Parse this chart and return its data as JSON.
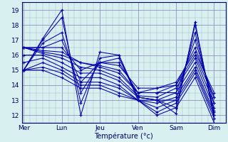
{
  "bg_color": "#d8f0f0",
  "grid_color_major": "#8888bb",
  "grid_color_minor": "#aabbcc",
  "line_color": "#0000aa",
  "ylim": [
    11.5,
    19.5
  ],
  "yticks": [
    12,
    13,
    14,
    15,
    16,
    17,
    18,
    19
  ],
  "day_labels": [
    "Mer",
    "Lun",
    "Jeu",
    "Ven",
    "Sam",
    "Dim"
  ],
  "xlabel": "Température (°c)",
  "x_major": [
    0,
    1,
    2,
    3,
    4,
    5
  ],
  "xlim": [
    -0.05,
    5.3
  ],
  "series": [
    [
      15.0,
      17.1,
      19.0,
      12.0,
      16.2,
      16.0,
      13.2,
      13.0,
      12.1,
      18.2,
      11.8
    ],
    [
      15.0,
      17.0,
      18.5,
      12.8,
      15.8,
      16.0,
      13.0,
      13.0,
      12.5,
      18.0,
      12.0
    ],
    [
      15.0,
      16.8,
      17.5,
      13.5,
      15.5,
      15.8,
      13.2,
      13.0,
      13.0,
      17.5,
      12.3
    ],
    [
      16.5,
      16.5,
      17.0,
      14.2,
      15.5,
      15.5,
      13.5,
      13.5,
      13.5,
      17.0,
      12.8
    ],
    [
      16.5,
      16.5,
      16.5,
      15.0,
      15.5,
      15.3,
      13.8,
      13.8,
      14.0,
      16.5,
      13.2
    ],
    [
      16.5,
      16.3,
      16.2,
      15.5,
      15.3,
      15.0,
      13.5,
      13.8,
      14.2,
      16.2,
      13.5
    ],
    [
      16.5,
      16.2,
      16.0,
      15.5,
      15.2,
      14.8,
      13.5,
      13.5,
      14.0,
      16.0,
      13.2
    ],
    [
      16.5,
      16.1,
      15.8,
      15.2,
      15.0,
      14.5,
      13.3,
      13.2,
      13.8,
      15.8,
      12.8
    ],
    [
      16.0,
      16.0,
      15.5,
      14.8,
      14.8,
      14.3,
      13.2,
      13.0,
      13.5,
      15.5,
      12.5
    ],
    [
      15.5,
      15.8,
      15.2,
      14.5,
      14.5,
      14.0,
      13.0,
      12.8,
      13.2,
      15.2,
      12.2
    ],
    [
      15.0,
      15.5,
      15.0,
      14.2,
      14.2,
      13.8,
      13.0,
      12.5,
      13.0,
      15.0,
      12.0
    ],
    [
      15.0,
      15.2,
      14.8,
      14.0,
      14.0,
      13.5,
      13.0,
      12.2,
      12.8,
      14.8,
      11.8
    ],
    [
      15.0,
      15.0,
      14.5,
      13.8,
      13.8,
      13.3,
      13.0,
      12.0,
      12.5,
      14.5,
      11.5
    ]
  ]
}
